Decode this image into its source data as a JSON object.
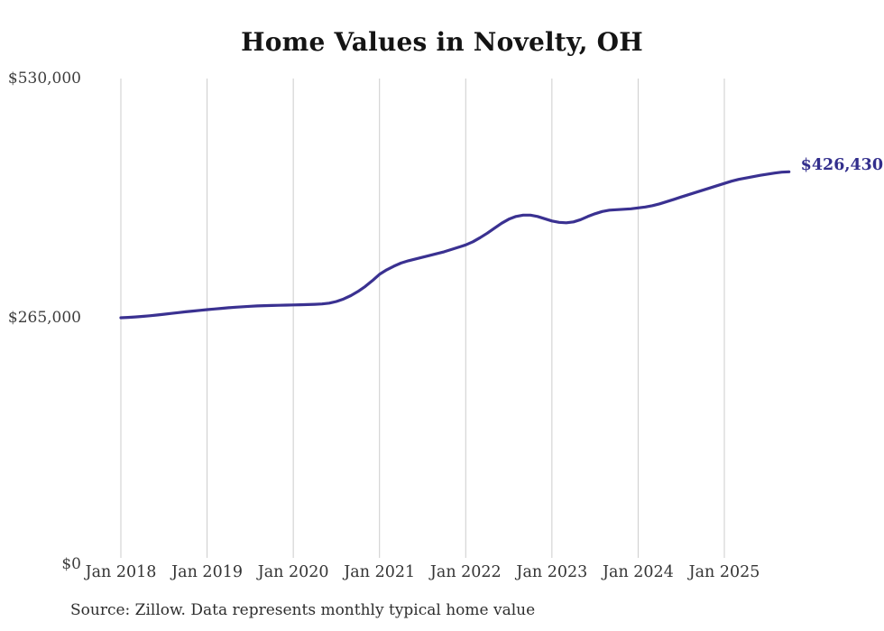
{
  "title": "Home Values in Novelty, OH",
  "source_note": "Source: Zillow. Data represents monthly typical home value",
  "colors": {
    "background": "#ffffff",
    "line": "#3a3191",
    "end_label": "#322e8c",
    "grid": "#cccccc",
    "title_text": "#141414",
    "axis_text": "#3d3d3d"
  },
  "chart_data": {
    "type": "line",
    "title": "Home Values in Novelty, OH",
    "xlabel": "",
    "ylabel": "",
    "ylim": [
      0,
      530000
    ],
    "grid": "vertical-only",
    "legend": "none",
    "y_ticks": [
      {
        "value": 0,
        "label": "$0"
      },
      {
        "value": 265000,
        "label": "$265,000"
      },
      {
        "value": 530000,
        "label": "$530,000"
      }
    ],
    "x_ticks": [
      "Jan 2018",
      "Jan 2019",
      "Jan 2020",
      "Jan 2021",
      "Jan 2022",
      "Jan 2023",
      "Jan 2024",
      "Jan 2025"
    ],
    "series": [
      {
        "name": "Monthly typical home value",
        "start_month": "2018-01",
        "end_month": "2025-10",
        "interval": "monthly",
        "final_value": 426430,
        "final_value_label": "$426,430",
        "values": [
          265000,
          265400,
          265900,
          266500,
          267200,
          268000,
          268900,
          269800,
          270700,
          271600,
          272400,
          273200,
          274000,
          274700,
          275400,
          276100,
          276700,
          277200,
          277700,
          278100,
          278400,
          278600,
          278800,
          279000,
          279200,
          279400,
          279600,
          279900,
          280300,
          281200,
          283000,
          285800,
          289500,
          294000,
          299500,
          306000,
          313000,
          318000,
          322000,
          325500,
          328000,
          330000,
          332000,
          334000,
          336000,
          338000,
          340500,
          343000,
          345500,
          349000,
          353500,
          358500,
          364000,
          369500,
          374000,
          377000,
          378500,
          378500,
          377000,
          374500,
          372000,
          370500,
          370000,
          371000,
          373500,
          377000,
          380000,
          382500,
          384000,
          384500,
          385000,
          385500,
          386500,
          387500,
          389000,
          391000,
          393500,
          396000,
          398500,
          401000,
          403500,
          406000,
          408500,
          411000,
          413500,
          416000,
          418000,
          419500,
          421000,
          422500,
          423800,
          425000,
          426000,
          426430
        ]
      }
    ]
  }
}
